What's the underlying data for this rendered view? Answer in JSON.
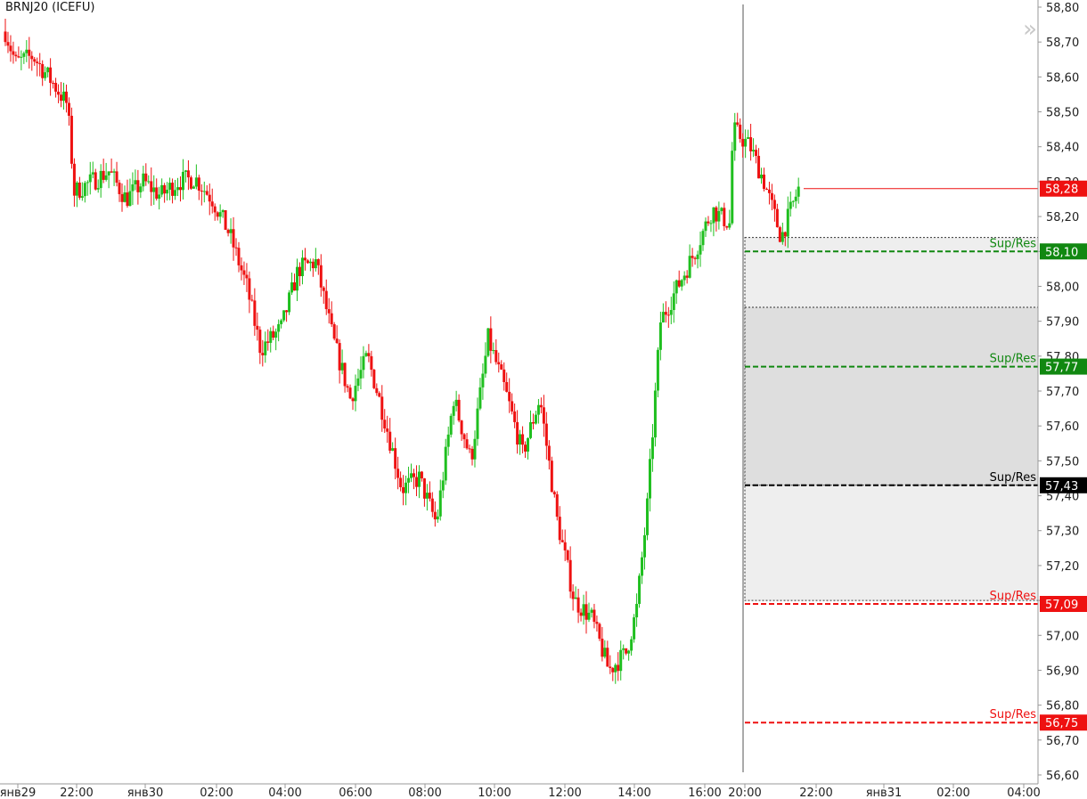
{
  "instrument": "BRNJ20 (ICEFU)",
  "nav_icon": "double-chevron-right-icon",
  "colors": {
    "up": "#1fbf1f",
    "down": "#ee1111",
    "support": "#118811",
    "resistance": "#ee1111",
    "neutral": "#000000",
    "zone_light": "#eeeeee",
    "zone_dark": "#dedede"
  },
  "chart_data": {
    "type": "candlestick",
    "y_axis": {
      "min": 56.6,
      "max": 58.8,
      "step": 0.1,
      "tick_labels": [
        "58,80",
        "58,70",
        "58,60",
        "58,50",
        "58,40",
        "58,30",
        "58,20",
        "58,10",
        "58,00",
        "57,90",
        "57,80",
        "57,70",
        "57,60",
        "57,50",
        "57,40",
        "57,30",
        "57,20",
        "57,10",
        "57,00",
        "56,90",
        "56,80",
        "56,70",
        "56,60"
      ]
    },
    "x_axis": {
      "tick_labels": [
        "янв29",
        "22:00",
        "янв30",
        "02:00",
        "04:00",
        "06:00",
        "08:00",
        "10:00",
        "12:00",
        "14:00",
        "16:00",
        "20:00",
        "22:00",
        "янв31",
        "02:00",
        "04:00"
      ]
    },
    "price_path": [
      [
        0,
        58.73
      ],
      [
        0.3,
        58.64
      ],
      [
        0.8,
        58.66
      ],
      [
        1.4,
        58.58
      ],
      [
        1.8,
        58.52
      ],
      [
        2.0,
        58.27
      ],
      [
        2.5,
        58.3
      ],
      [
        3.0,
        58.33
      ],
      [
        3.5,
        58.25
      ],
      [
        4.0,
        58.3
      ],
      [
        4.5,
        58.26
      ],
      [
        5.0,
        58.3
      ],
      [
        5.5,
        58.31
      ],
      [
        6.0,
        58.25
      ],
      [
        6.5,
        58.15
      ],
      [
        7.0,
        58.0
      ],
      [
        7.4,
        57.82
      ],
      [
        8.0,
        57.88
      ],
      [
        8.5,
        58.05
      ],
      [
        9.0,
        58.07
      ],
      [
        9.5,
        57.85
      ],
      [
        10.0,
        57.68
      ],
      [
        10.5,
        57.8
      ],
      [
        11.0,
        57.62
      ],
      [
        11.5,
        57.42
      ],
      [
        12.0,
        57.45
      ],
      [
        12.5,
        57.32
      ],
      [
        13.0,
        57.68
      ],
      [
        13.5,
        57.5
      ],
      [
        14.0,
        57.85
      ],
      [
        14.5,
        57.7
      ],
      [
        15.0,
        57.52
      ],
      [
        15.5,
        57.68
      ],
      [
        16.0,
        57.33
      ],
      [
        16.5,
        57.1
      ],
      [
        17.0,
        57.05
      ],
      [
        17.5,
        56.9
      ],
      [
        18.0,
        56.95
      ],
      [
        18.3,
        57.07
      ],
      [
        18.6,
        57.35
      ],
      [
        19.0,
        57.9
      ],
      [
        19.5,
        58.0
      ],
      [
        20.0,
        58.1
      ],
      [
        20.5,
        58.22
      ],
      [
        21.0,
        58.18
      ],
      [
        21.1,
        58.45
      ],
      [
        21.6,
        58.4
      ],
      [
        22.0,
        58.3
      ],
      [
        22.5,
        58.14
      ],
      [
        23.0,
        58.28
      ]
    ],
    "last_price": {
      "value": 58.28,
      "label": "58,28"
    },
    "levels": [
      {
        "type": "support",
        "value": 58.1,
        "label": "58,10",
        "tag": "Sup/Res"
      },
      {
        "type": "support",
        "value": 57.77,
        "label": "57,77",
        "tag": "Sup/Res"
      },
      {
        "type": "neutral",
        "value": 57.43,
        "label": "57,43",
        "tag": "Sup/Res"
      },
      {
        "type": "resistance",
        "value": 57.09,
        "label": "57,09",
        "tag": "Sup/Res"
      },
      {
        "type": "resistance",
        "value": 56.75,
        "label": "56,75",
        "tag": "Sup/Res"
      }
    ],
    "zones": [
      {
        "from": 57.1,
        "to": 58.14,
        "shade": "zone_light"
      },
      {
        "from": 57.43,
        "to": 57.94,
        "shade": "zone_dark"
      }
    ],
    "session_start_x": 21.0
  }
}
